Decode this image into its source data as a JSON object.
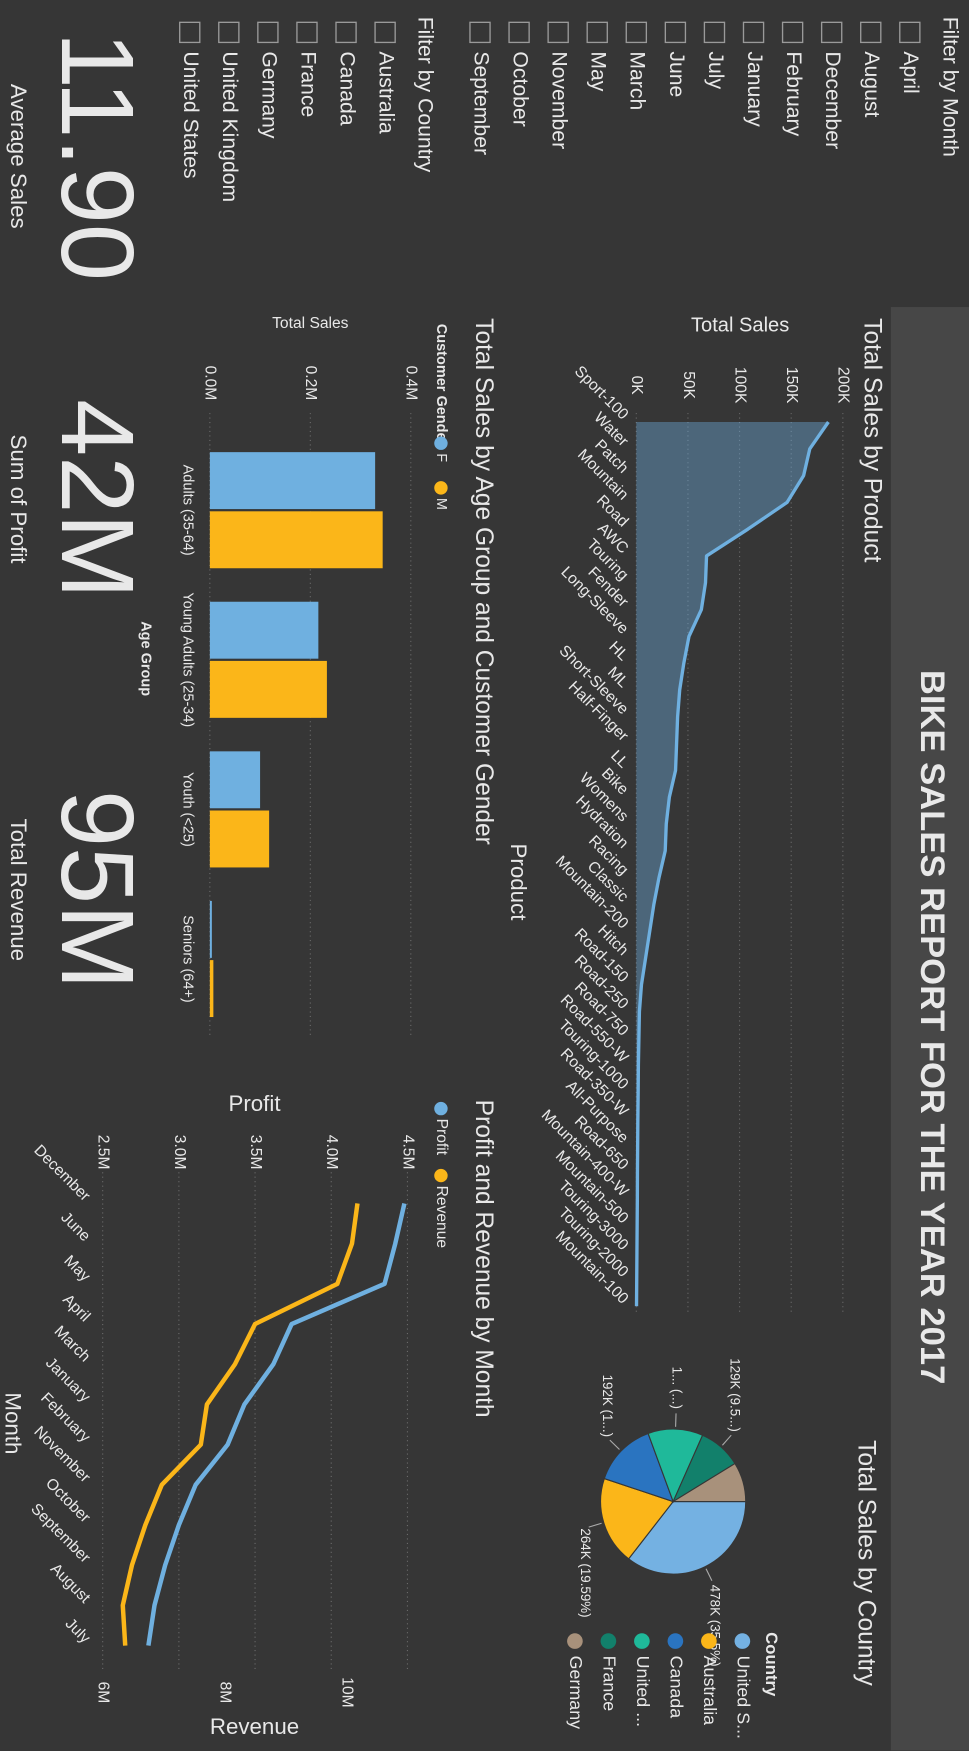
{
  "header": {
    "title": "BIKE SALES REPORT FOR THE YEAR 2017"
  },
  "filters": [
    {
      "title": "Filter by Month",
      "options": [
        "April",
        "August",
        "December",
        "February",
        "January",
        "July",
        "June",
        "March",
        "May",
        "November",
        "October",
        "September"
      ]
    },
    {
      "title": "Filter by Country",
      "options": [
        "Australia",
        "Canada",
        "France",
        "Germany",
        "United Kingdom",
        "United States"
      ]
    }
  ],
  "kpis": [
    {
      "value": "11.90",
      "label": "Average Sales"
    },
    {
      "value": "42M",
      "label": "Sum of Profit"
    },
    {
      "value": "95M",
      "label": "Total Revenue"
    }
  ],
  "chart_data": [
    {
      "type": "area",
      "title": "Total Sales by Product",
      "x_label": "Product",
      "y_label": "Total Sales",
      "categories": [
        "Sport-100",
        "Water",
        "Patch",
        "Mountain",
        "Road",
        "AWC",
        "Touring",
        "Fender",
        "Long-Sleeve",
        "HL",
        "ML",
        "Short-Sleeve",
        "Half-Finger",
        "LL",
        "Bike",
        "Womens",
        "Hydration",
        "Racing",
        "Classic",
        "Mountain-200",
        "Hitch",
        "Road-150",
        "Road-250",
        "Road-750",
        "Road-550-W",
        "Touring-1000",
        "Road-350-W",
        "All-Purpose",
        "Road-650",
        "Mountain-400-W",
        "Mountain-500",
        "Touring-3000",
        "Touring-2000",
        "Mountain-100"
      ],
      "values": [
        186000,
        168000,
        162000,
        146000,
        108000,
        68000,
        67000,
        63000,
        51000,
        46000,
        42000,
        40000,
        39000,
        38000,
        32000,
        29000,
        28000,
        22000,
        17000,
        13000,
        9000,
        5000,
        3000,
        2500,
        2000,
        1800,
        1500,
        1300,
        1100,
        1000,
        800,
        600,
        400,
        200
      ],
      "color": "#6fb0e0",
      "grid": true,
      "ylim": [
        0,
        200000
      ],
      "yticks": [
        {
          "value": 0,
          "label": "0K"
        },
        {
          "value": 50000,
          "label": "50K"
        },
        {
          "value": 100000,
          "label": "100K"
        },
        {
          "value": 150000,
          "label": "150K"
        },
        {
          "value": 200000,
          "label": "200K"
        }
      ]
    },
    {
      "type": "pie",
      "title": "Total Sales by Country",
      "legend_title": "Country",
      "categories": [
        "United S...",
        "Australia",
        "Canada",
        "United ...",
        "France",
        "Germany"
      ],
      "values": [
        478000,
        264000,
        192000,
        165000,
        129000,
        118000
      ],
      "value_labels": [
        "478K (35.5%)",
        "264K (19.59%)",
        "192K (1...)",
        "1... (...)",
        "129K (9.5...)",
        null
      ],
      "colors": [
        "#74b1e2",
        "#fbb619",
        "#2a74c0",
        "#1fb99a",
        "#12806b",
        "#a8917b"
      ]
    },
    {
      "type": "bar",
      "title": "Total Sales by Age Group and Customer Gender",
      "x_label": "Age Group",
      "y_label": "Total Sales",
      "legend_title": "Customer Gender",
      "categories": [
        "Adults (35-64)",
        "Young Adults (25-34)",
        "Youth (<25)",
        "Seniors (64+)"
      ],
      "series": [
        {
          "name": "F",
          "color": "#6fb0e0",
          "values": [
            329000,
            216000,
            100000,
            4000
          ]
        },
        {
          "name": "M",
          "color": "#fbb619",
          "values": [
            344000,
            233000,
            118000,
            7000
          ]
        }
      ],
      "grid": true,
      "ylim": [
        0,
        400000
      ],
      "yticks": [
        {
          "value": 0,
          "label": "0.0M"
        },
        {
          "value": 200000,
          "label": "0.2M"
        },
        {
          "value": 400000,
          "label": "0.4M"
        }
      ]
    },
    {
      "type": "line",
      "title": "Profit and Revenue by Month",
      "x_label": "Month",
      "y_label": "Profit",
      "y2_label": "Revenue",
      "categories": [
        "December",
        "June",
        "May",
        "April",
        "March",
        "January",
        "February",
        "November",
        "October",
        "September",
        "August",
        "July"
      ],
      "series": [
        {
          "name": "Profit",
          "color": "#6fb0e0",
          "values": [
            4480000,
            4420000,
            4350000,
            3740000,
            3620000,
            3430000,
            3320000,
            3110000,
            3000000,
            2910000,
            2840000,
            2800000
          ]
        },
        {
          "name": "Revenue",
          "color": "#fbb619",
          "axis": "y2",
          "values": [
            10180000,
            10090000,
            9850000,
            8500000,
            8170000,
            7710000,
            7610000,
            6970000,
            6700000,
            6480000,
            6330000,
            6370000
          ]
        }
      ],
      "grid": true,
      "ylim": [
        2500000,
        4500000
      ],
      "yticks": [
        {
          "value": 2500000,
          "label": "2.5M"
        },
        {
          "value": 3000000,
          "label": "3.0M"
        },
        {
          "value": 3500000,
          "label": "3.5M"
        },
        {
          "value": 4000000,
          "label": "4.0M"
        },
        {
          "value": 4500000,
          "label": "4.5M"
        }
      ],
      "y2lim": [
        6000000,
        11000000
      ],
      "y2ticks": [
        {
          "value": 6000000,
          "label": "6M"
        },
        {
          "value": 8000000,
          "label": "8M"
        },
        {
          "value": 10000000,
          "label": "10M"
        }
      ]
    }
  ]
}
